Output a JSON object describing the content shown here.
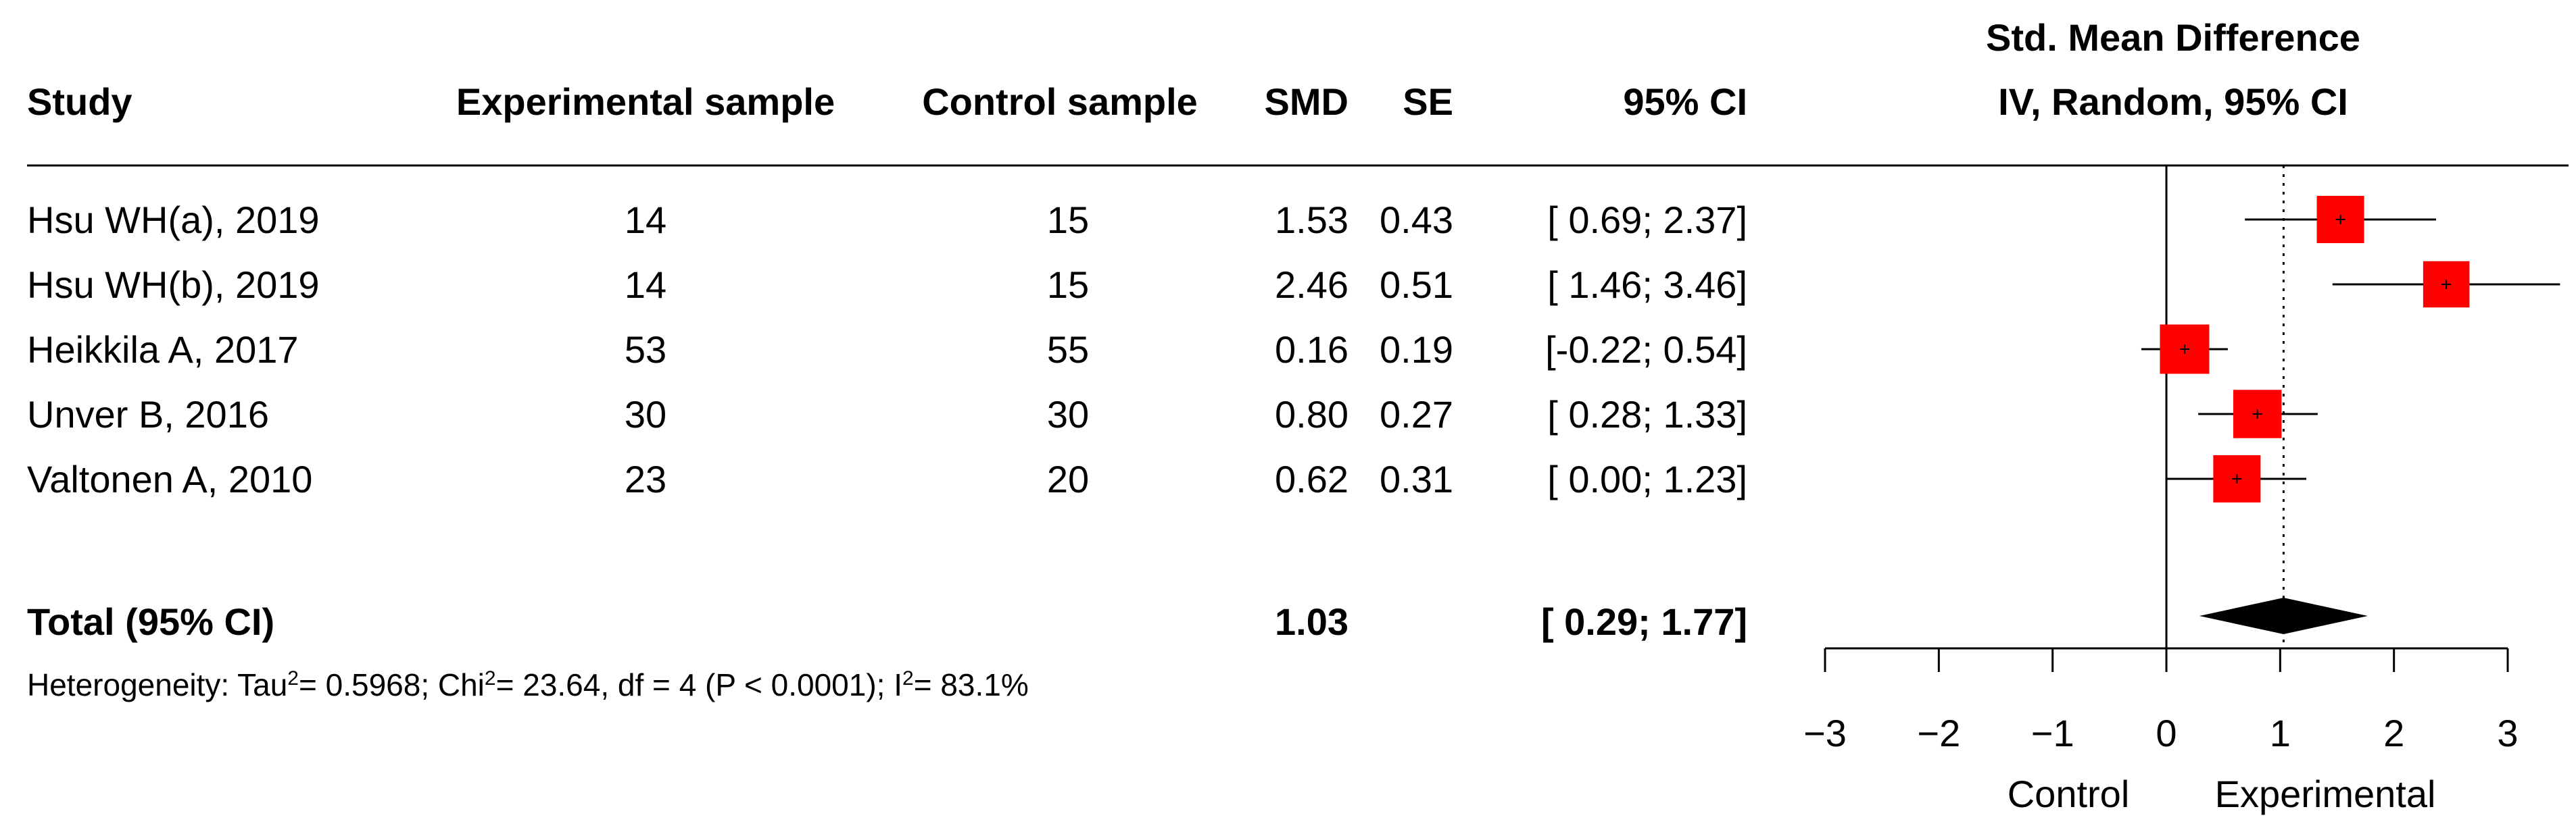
{
  "chart_data": {
    "type": "forest",
    "headers": {
      "study": "Study",
      "experimental": "Experimental sample",
      "control": "Control sample",
      "smd": "SMD",
      "se": "SE",
      "ci": "95% CI",
      "plot_title_1": "Std. Mean Difference",
      "plot_title_2": "IV, Random, 95% CI"
    },
    "studies": [
      {
        "label": "Hsu WH(a), 2019",
        "experimental_n": "14",
        "control_n": "15",
        "smd": 1.53,
        "smd_text": "1.53",
        "se_text": "0.43",
        "ci_text": "[ 0.69; 2.37]",
        "lower": 0.69,
        "upper": 2.37,
        "weight": 0.2
      },
      {
        "label": "Hsu WH(b), 2019",
        "experimental_n": "14",
        "control_n": "15",
        "smd": 2.46,
        "smd_text": "2.46",
        "se_text": "0.51",
        "ci_text": "[ 1.46; 3.46]",
        "lower": 1.46,
        "upper": 3.46,
        "weight": 0.19
      },
      {
        "label": "Heikkila A, 2017",
        "experimental_n": "53",
        "control_n": "55",
        "smd": 0.16,
        "smd_text": "0.16",
        "se_text": "0.19",
        "ci_text": "[-0.22; 0.54]",
        "lower": -0.22,
        "upper": 0.54,
        "weight": 0.22
      },
      {
        "label": "Unver B, 2016",
        "experimental_n": "30",
        "control_n": "30",
        "smd": 0.8,
        "smd_text": "0.80",
        "se_text": "0.27",
        "ci_text": "[ 0.28; 1.33]",
        "lower": 0.28,
        "upper": 1.33,
        "weight": 0.21
      },
      {
        "label": "Valtonen A, 2010",
        "experimental_n": "23",
        "control_n": "20",
        "smd": 0.62,
        "smd_text": "0.62",
        "se_text": "0.31",
        "ci_text": "[ 0.00; 1.23]",
        "lower": 0.0,
        "upper": 1.23,
        "weight": 0.2
      }
    ],
    "total": {
      "label": "Total (95% CI)",
      "smd": 1.03,
      "smd_text": "1.03",
      "ci_text": "[ 0.29; 1.77]",
      "lower": 0.29,
      "upper": 1.77
    },
    "heterogeneity": {
      "prefix": "Heterogeneity: Tau",
      "tau2": "= 0.5968; Chi",
      "chi2": "= 23.64, df = 4 (P < 0.0001); I",
      "i2": "= 83.1%",
      "sup": "2"
    },
    "xlim": [
      -3,
      3
    ],
    "ticks": [
      -3,
      -2,
      -1,
      0,
      1,
      2,
      3
    ],
    "tick_labels": [
      "−3",
      "−2",
      "−1",
      "0",
      "1",
      "2",
      "3"
    ],
    "null_value": 0,
    "favours_left": "Control",
    "favours_right": "Experimental",
    "colors": {
      "square": "#ff0000",
      "diamond": "#000000",
      "text": "#000000"
    }
  }
}
